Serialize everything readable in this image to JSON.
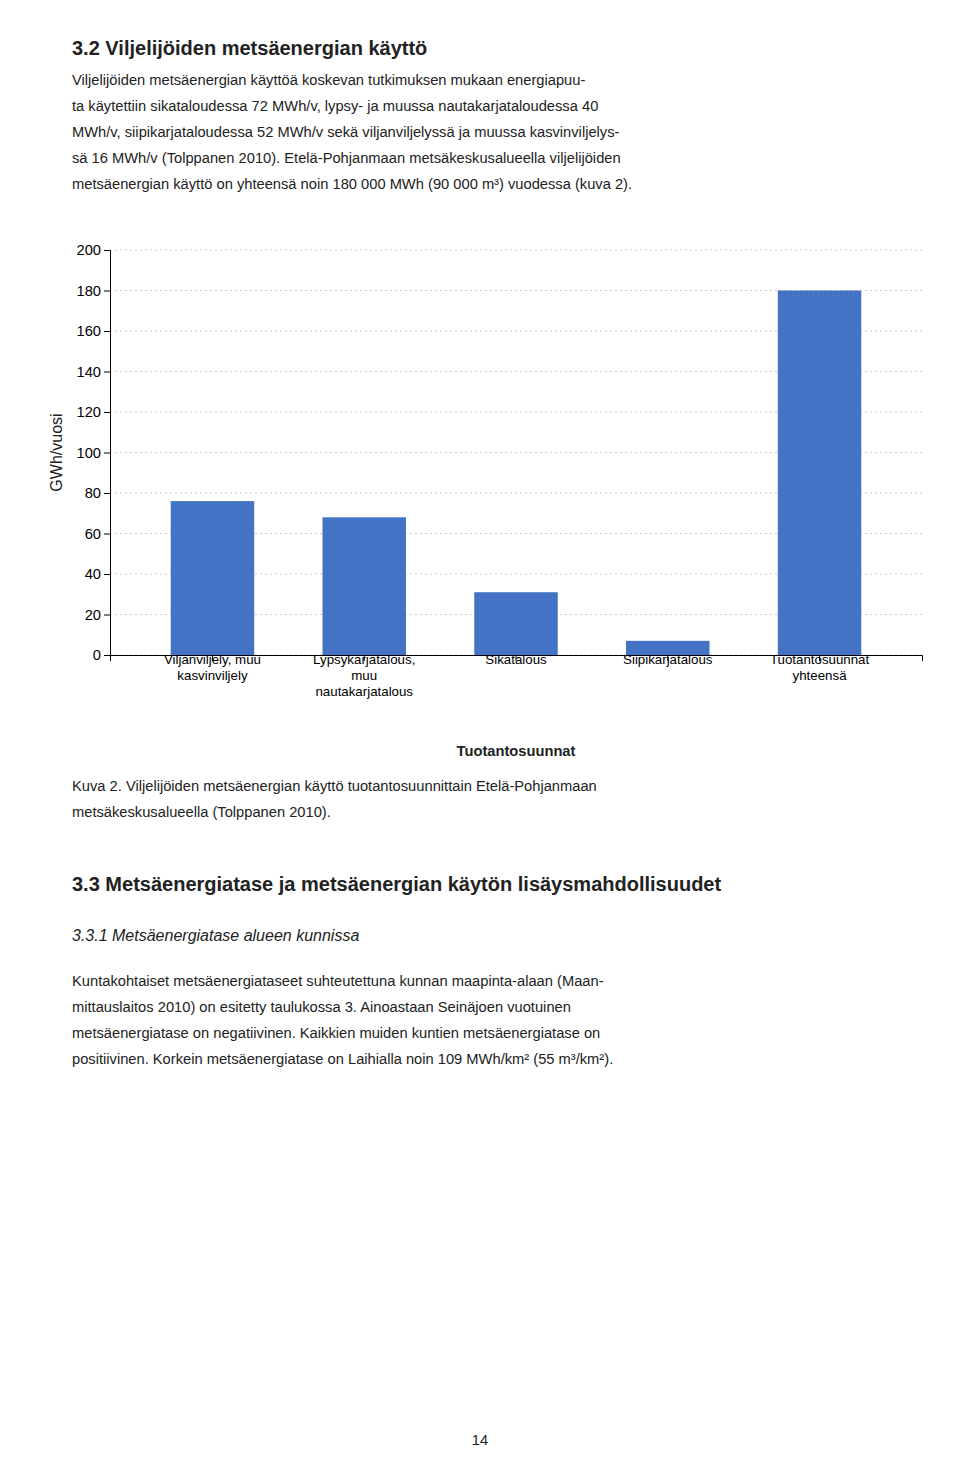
{
  "heading": "3.2 Viljelijöiden metsäenergian käyttö",
  "body_lines": [
    "Viljelijöiden metsäenergian käyttöä koskevan tutkimuksen mukaan energiapuu-",
    "ta käytettiin sikataloudessa 72 MWh/v, lypsy- ja muussa nautakarjataloudessa 40",
    "MWh/v, siipikarjataloudessa 52 MWh/v sekä viljanviljelyssä ja muussa kasvinviljelys-",
    "sä 16 MWh/v (Tolppanen 2010). Etelä-Pohjanmaan metsäkeskusalueella viljelijöiden",
    "metsäenergian käyttö on yhteensä noin 180 000 MWh (90 000 m³) vuodessa (kuva 2)."
  ],
  "chart_data": {
    "type": "bar",
    "categories": [
      "Viljanviljely, muu\nkasvinviljely",
      "Lypsykarjatalous,\nmuu\nnautakarjatalous",
      "Sikatalous",
      "Siipikarjatalous",
      "Tuotantosuunnat\nyhteensä"
    ],
    "values": [
      76,
      68,
      31,
      7,
      180
    ],
    "color": "#4472C4",
    "xlabel": "Tuotantosuunnat",
    "ylabel": "GWh/vuosi",
    "ylim": [
      0,
      200
    ],
    "yticks": [
      0,
      20,
      40,
      60,
      80,
      100,
      120,
      140,
      160,
      180,
      200
    ],
    "grid": true
  },
  "caption_lines": [
    "Kuva 2. Viljelijöiden metsäenergian käyttö tuotantosuunnittain Etelä-Pohjanmaan",
    "metsäkeskusalueella (Tolppanen 2010)."
  ],
  "section_title": "3.3  Metsäenergiatase ja metsäenergian käytön lisäysmahdollisuudet",
  "subsection_title": "3.3.1 Metsäenergiatase alueen kunnissa",
  "body2_lines": [
    "Kuntakohtaiset metsäenergiataseet suhteutettuna kunnan maapinta-alaan (Maan-",
    "mittauslaitos 2010) on esitetty taulukossa 3. Ainoastaan Seinäjoen vuotuinen",
    "metsäenergiatase on negatiivinen. Kaikkien muiden kuntien metsäenergiatase on",
    "positiivinen. Korkein metsäenergiatase on Laihialla noin 109 MWh/km² (55 m³/km²)."
  ],
  "page_number": "14"
}
